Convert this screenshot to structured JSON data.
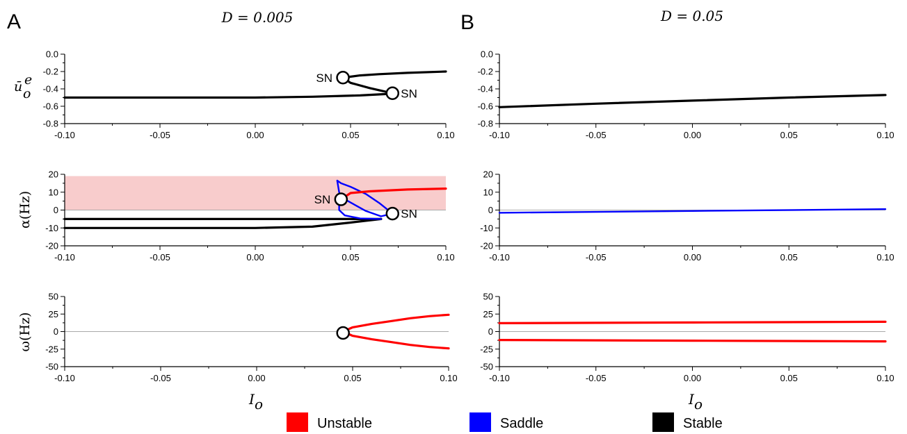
{
  "columns": [
    {
      "letter": "A",
      "title": "D = 0.005"
    },
    {
      "letter": "B",
      "title": "D = 0.05"
    }
  ],
  "xlabel": "I",
  "xlabel_sub": "o",
  "legend": [
    {
      "label": "Unstable",
      "color": "#ff0000"
    },
    {
      "label": "Saddle",
      "color": "#0000ff"
    },
    {
      "label": "Stable",
      "color": "#000000"
    }
  ],
  "ylabels": {
    "u": {
      "main": "ū",
      "sup": "e",
      "sub": "o"
    },
    "alpha": "α(Hz)",
    "omega": "ω(Hz)"
  },
  "chart_data": [
    {
      "id": "A-u",
      "type": "line",
      "xlim": [
        -0.1,
        0.1
      ],
      "ylim": [
        -0.8,
        0.0
      ],
      "xticks": [
        "-0.10",
        "-0.05",
        "0.00",
        "0.05",
        "0.10"
      ],
      "yticks": [
        "0.0",
        "-0.2",
        "-0.4",
        "-0.6",
        "-0.8"
      ],
      "zero_line": false,
      "series": [
        {
          "stability": "stable",
          "x": [
            -0.1,
            -0.05,
            0.0,
            0.03,
            0.055,
            0.068,
            0.072
          ],
          "y": [
            -0.5,
            -0.5,
            -0.5,
            -0.49,
            -0.475,
            -0.46,
            -0.45
          ]
        },
        {
          "stability": "stable",
          "x": [
            0.072,
            0.06,
            0.05,
            0.046
          ],
          "y": [
            -0.45,
            -0.39,
            -0.33,
            -0.27
          ]
        },
        {
          "stability": "stable",
          "x": [
            0.046,
            0.055,
            0.065,
            0.08,
            0.1
          ],
          "y": [
            -0.27,
            -0.245,
            -0.23,
            -0.215,
            -0.2
          ]
        }
      ],
      "markers": [
        {
          "x": 0.046,
          "y": -0.27,
          "label": "SN",
          "label_side": "left"
        },
        {
          "x": 0.072,
          "y": -0.45,
          "label": "SN",
          "label_side": "right"
        }
      ]
    },
    {
      "id": "A-alpha",
      "type": "line",
      "xlim": [
        -0.1,
        0.1
      ],
      "ylim": [
        -20,
        20
      ],
      "xticks": [
        "-0.10",
        "-0.05",
        "0.00",
        "0.05",
        "0.10"
      ],
      "yticks": [
        "20",
        "10",
        "0",
        "-10",
        "-20"
      ],
      "zero_line": true,
      "shaded_region": {
        "x": [
          -0.1,
          0.1
        ],
        "y": [
          0,
          19
        ],
        "color": "#f8cccc"
      },
      "series": [
        {
          "stability": "stable",
          "x": [
            -0.1,
            0.066
          ],
          "y": [
            -5,
            -5
          ]
        },
        {
          "stability": "stable",
          "x": [
            -0.1,
            0.0,
            0.03,
            0.05,
            0.066
          ],
          "y": [
            -10,
            -10,
            -9.3,
            -7,
            -5
          ]
        },
        {
          "stability": "saddle",
          "x": [
            0.066,
            0.055,
            0.047,
            0.044,
            0.044,
            0.047,
            0.058,
            0.066,
            0.072
          ],
          "y": [
            -5,
            -4.7,
            -3,
            0,
            3,
            6,
            -0.5,
            -3.5,
            -2
          ]
        },
        {
          "stability": "saddle",
          "x": [
            0.045,
            0.044,
            0.043,
            0.045,
            0.05,
            0.058,
            0.065,
            0.072
          ],
          "y": [
            6,
            10,
            16.5,
            15,
            13,
            9,
            4,
            -2
          ]
        },
        {
          "stability": "unstable",
          "x": [
            0.045,
            0.05,
            0.06,
            0.08,
            0.1
          ],
          "y": [
            6,
            9.5,
            10.5,
            11.5,
            12
          ]
        }
      ],
      "markers": [
        {
          "x": 0.045,
          "y": 6,
          "label": "SN",
          "label_side": "left"
        },
        {
          "x": 0.072,
          "y": -2,
          "label": "SN",
          "label_side": "right"
        }
      ]
    },
    {
      "id": "A-omega",
      "type": "line",
      "xlim": [
        -0.1,
        0.1
      ],
      "ylim": [
        -50,
        50
      ],
      "xticks": [
        "-0.10",
        "-0.05",
        "0.00",
        "0.05",
        "0.10"
      ],
      "yticks": [
        "50",
        "25",
        "0",
        "-25",
        "-50"
      ],
      "zero_line": true,
      "series": [
        {
          "stability": "unstable",
          "x": [
            0.045,
            0.05,
            0.06,
            0.07,
            0.08,
            0.09,
            0.1
          ],
          "y": [
            0,
            6,
            11,
            15,
            19,
            22,
            24
          ]
        },
        {
          "stability": "unstable",
          "x": [
            0.045,
            0.05,
            0.06,
            0.07,
            0.08,
            0.09,
            0.1
          ],
          "y": [
            0,
            -6,
            -11,
            -15,
            -19,
            -22,
            -24
          ]
        }
      ],
      "markers": [
        {
          "x": 0.045,
          "y": -2,
          "label": "",
          "label_side": "left"
        }
      ]
    },
    {
      "id": "B-u",
      "type": "line",
      "xlim": [
        -0.1,
        0.1
      ],
      "ylim": [
        -0.8,
        0.0
      ],
      "xticks": [
        "-0.10",
        "-0.05",
        "0.00",
        "0.05",
        "0.10"
      ],
      "yticks": [
        "0.0",
        "-0.2",
        "-0.4",
        "-0.6",
        "-0.8"
      ],
      "zero_line": false,
      "series": [
        {
          "stability": "stable",
          "x": [
            -0.1,
            -0.05,
            0.0,
            0.05,
            0.1
          ],
          "y": [
            -0.61,
            -0.57,
            -0.535,
            -0.5,
            -0.47
          ]
        }
      ],
      "markers": []
    },
    {
      "id": "B-alpha",
      "type": "line",
      "xlim": [
        -0.1,
        0.1
      ],
      "ylim": [
        -20,
        20
      ],
      "xticks": [
        "-0.10",
        "-0.05",
        "0.00",
        "0.05",
        "0.10"
      ],
      "yticks": [
        "20",
        "10",
        "0",
        "-10",
        "-20"
      ],
      "zero_line": true,
      "series": [
        {
          "stability": "saddle",
          "x": [
            -0.1,
            0.0,
            0.1
          ],
          "y": [
            -1.5,
            -0.5,
            0.5
          ]
        }
      ],
      "markers": []
    },
    {
      "id": "B-omega",
      "type": "line",
      "xlim": [
        -0.1,
        0.1
      ],
      "ylim": [
        -50,
        50
      ],
      "xticks": [
        "-0.10",
        "-0.05",
        "0.00",
        "0.05",
        "0.10"
      ],
      "yticks": [
        "50",
        "25",
        "0",
        "-25",
        "-50"
      ],
      "zero_line": true,
      "series": [
        {
          "stability": "unstable",
          "x": [
            -0.1,
            0.0,
            0.1
          ],
          "y": [
            12,
            13,
            14
          ]
        },
        {
          "stability": "unstable",
          "x": [
            -0.1,
            0.0,
            0.1
          ],
          "y": [
            -12,
            -13,
            -14
          ]
        }
      ],
      "markers": []
    }
  ]
}
